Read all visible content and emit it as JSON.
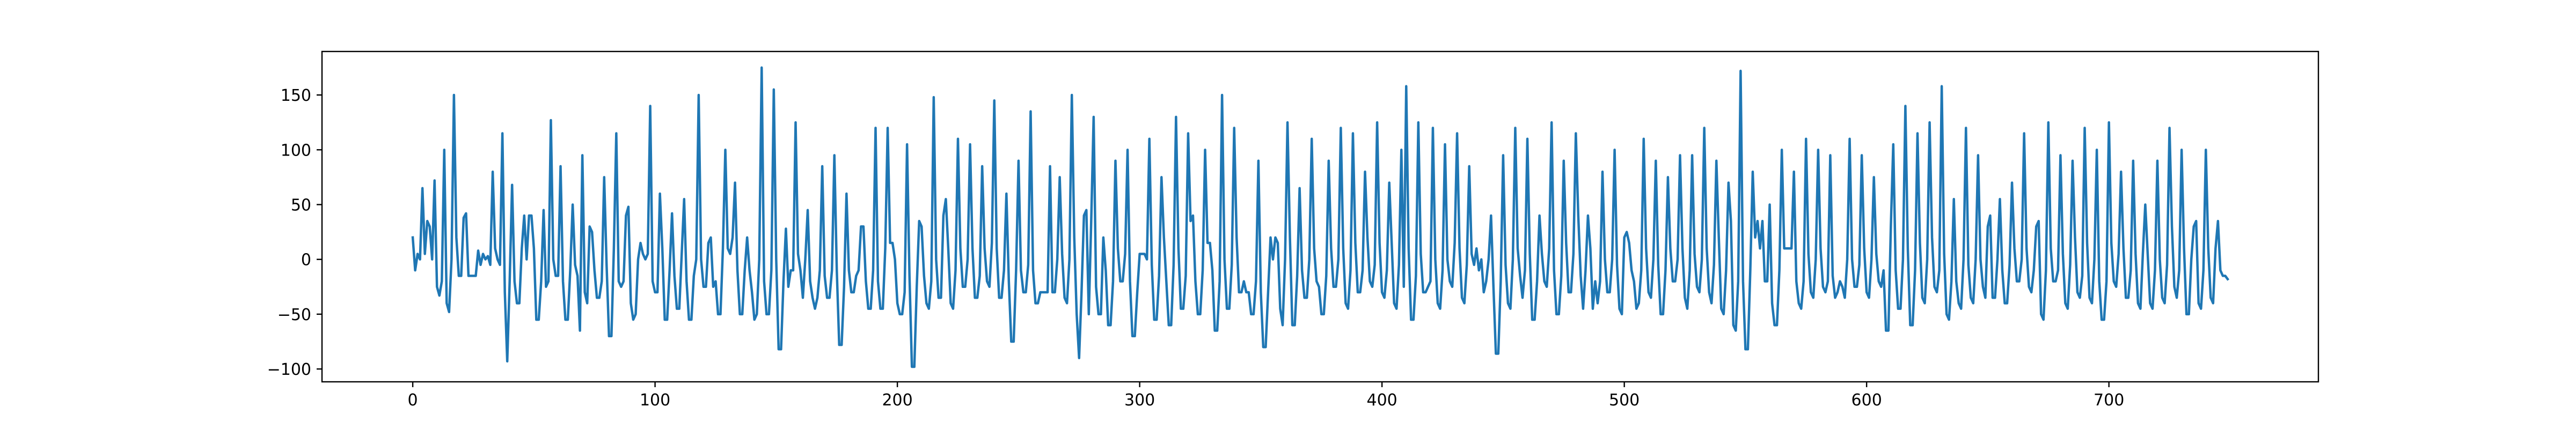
{
  "chart_data": {
    "type": "line",
    "color": "#1f77b4",
    "xlim": [
      -37.45,
      786.45
    ],
    "xticks": [
      0,
      100,
      200,
      300,
      400,
      500,
      600,
      700
    ],
    "ylim": [
      -111.7,
      189.7
    ],
    "yticks": [
      {
        "value": -100,
        "label": "−100"
      },
      {
        "value": -50,
        "label": "−50"
      },
      0,
      50,
      100,
      150
    ],
    "values": [
      20,
      -10,
      5,
      0,
      65,
      5,
      35,
      30,
      0,
      72,
      -25,
      -33,
      -20,
      100,
      -40,
      -48,
      0,
      150,
      20,
      -15,
      -15,
      38,
      42,
      -15,
      -15,
      -15,
      -15,
      8,
      -5,
      5,
      0,
      3,
      -5,
      80,
      10,
      0,
      -5,
      115,
      -30,
      -93,
      -20,
      68,
      -20,
      -40,
      -40,
      10,
      40,
      0,
      40,
      40,
      10,
      -55,
      -55,
      -20,
      45,
      -25,
      -20,
      127,
      0,
      -15,
      -15,
      85,
      -20,
      -55,
      -55,
      -10,
      50,
      -5,
      -15,
      -65,
      95,
      -30,
      -40,
      30,
      25,
      -10,
      -35,
      -35,
      -20,
      75,
      -5,
      -70,
      -70,
      10,
      115,
      -20,
      -25,
      -20,
      40,
      48,
      -40,
      -55,
      -50,
      0,
      15,
      5,
      0,
      5,
      140,
      -20,
      -30,
      -30,
      60,
      10,
      -55,
      -55,
      -10,
      42,
      -15,
      -45,
      -45,
      5,
      55,
      -20,
      -55,
      -55,
      -15,
      0,
      150,
      0,
      -25,
      -25,
      15,
      20,
      -25,
      -20,
      -50,
      -50,
      10,
      100,
      10,
      5,
      20,
      70,
      -10,
      -50,
      -50,
      -10,
      20,
      -10,
      -30,
      -55,
      -50,
      0,
      175,
      -20,
      -50,
      -50,
      -10,
      155,
      0,
      -82,
      -82,
      -20,
      28,
      -25,
      -10,
      -10,
      125,
      5,
      -10,
      -35,
      0,
      45,
      -20,
      -35,
      -45,
      -35,
      -10,
      85,
      -15,
      -35,
      -35,
      -10,
      95,
      -10,
      -78,
      -78,
      -25,
      60,
      -10,
      -30,
      -30,
      -15,
      -10,
      30,
      30,
      -20,
      -45,
      -45,
      -10,
      120,
      -20,
      -45,
      -45,
      10,
      120,
      15,
      15,
      0,
      -40,
      -50,
      -50,
      -30,
      105,
      -15,
      -98,
      -98,
      -25,
      35,
      30,
      -15,
      -40,
      -45,
      -20,
      148,
      0,
      -35,
      -35,
      40,
      55,
      10,
      -40,
      -45,
      -10,
      110,
      10,
      -25,
      -25,
      0,
      105,
      10,
      -35,
      -35,
      -15,
      85,
      10,
      -20,
      -25,
      15,
      145,
      10,
      -35,
      -35,
      -10,
      60,
      -20,
      -75,
      -75,
      -10,
      90,
      -10,
      -30,
      -30,
      -5,
      135,
      -10,
      -40,
      -40,
      -30,
      -30,
      -30,
      -30,
      85,
      -30,
      -30,
      0,
      75,
      5,
      -35,
      -40,
      0,
      150,
      20,
      -50,
      -90,
      -30,
      40,
      45,
      -50,
      35,
      130,
      -25,
      -50,
      -50,
      20,
      -10,
      -60,
      -60,
      -20,
      90,
      10,
      -20,
      -20,
      5,
      100,
      -20,
      -70,
      -70,
      -30,
      5,
      5,
      5,
      0,
      110,
      -5,
      -55,
      -55,
      -15,
      75,
      20,
      -20,
      -60,
      -60,
      -5,
      130,
      10,
      -45,
      -45,
      -15,
      115,
      35,
      40,
      -20,
      -50,
      -50,
      -10,
      100,
      15,
      15,
      -10,
      -65,
      -65,
      -20,
      150,
      0,
      -45,
      -45,
      -5,
      120,
      20,
      -30,
      -30,
      -20,
      -30,
      -30,
      -50,
      -50,
      -20,
      90,
      -30,
      -80,
      -80,
      -30,
      20,
      0,
      20,
      15,
      -45,
      -60,
      0,
      125,
      20,
      -60,
      -60,
      -15,
      65,
      -10,
      -35,
      -35,
      0,
      110,
      10,
      -20,
      -25,
      -50,
      -50,
      -15,
      90,
      10,
      -25,
      -25,
      0,
      120,
      10,
      -40,
      -45,
      -10,
      115,
      15,
      -30,
      -30,
      -10,
      80,
      20,
      -20,
      -25,
      -5,
      125,
      15,
      -30,
      -35,
      -10,
      70,
      15,
      -40,
      -45,
      -5,
      100,
      -25,
      158,
      10,
      -55,
      -55,
      -15,
      125,
      5,
      -30,
      -30,
      -25,
      -20,
      120,
      0,
      -40,
      -45,
      -10,
      105,
      0,
      -20,
      -25,
      15,
      115,
      10,
      -35,
      -40,
      -5,
      85,
      5,
      -5,
      10,
      -10,
      0,
      -30,
      -20,
      0,
      40,
      -25,
      -86,
      -86,
      -20,
      95,
      -5,
      -40,
      -45,
      0,
      120,
      10,
      -15,
      -35,
      -10,
      110,
      5,
      -55,
      -55,
      -20,
      40,
      5,
      -20,
      -25,
      10,
      125,
      -10,
      -50,
      -50,
      -15,
      90,
      15,
      -30,
      -30,
      5,
      115,
      40,
      -15,
      -45,
      -10,
      40,
      10,
      -45,
      -20,
      -40,
      -20,
      80,
      0,
      -30,
      -30,
      0,
      100,
      -5,
      -45,
      -50,
      20,
      25,
      15,
      -10,
      -20,
      -45,
      -40,
      -10,
      110,
      10,
      -30,
      -35,
      0,
      90,
      -5,
      -50,
      -50,
      -10,
      75,
      10,
      -20,
      -20,
      0,
      95,
      10,
      -35,
      -45,
      -10,
      95,
      5,
      -25,
      -30,
      0,
      120,
      10,
      -30,
      -40,
      -5,
      90,
      20,
      -45,
      -50,
      -10,
      70,
      35,
      -60,
      -65,
      -20,
      172,
      -20,
      -82,
      -82,
      -10,
      80,
      20,
      35,
      10,
      35,
      -20,
      -20,
      50,
      -40,
      -60,
      -60,
      -10,
      100,
      10,
      10,
      10,
      10,
      80,
      -20,
      -40,
      -45,
      -20,
      110,
      5,
      -30,
      -35,
      0,
      100,
      10,
      -25,
      -30,
      -20,
      95,
      -15,
      -35,
      -30,
      -20,
      -25,
      -35,
      0,
      110,
      0,
      -25,
      -25,
      -5,
      95,
      10,
      -30,
      -35,
      0,
      75,
      5,
      -20,
      -25,
      -10,
      -65,
      -65,
      30,
      105,
      -10,
      -45,
      -45,
      0,
      140,
      10,
      -60,
      -60,
      -10,
      115,
      15,
      -35,
      -40,
      0,
      125,
      20,
      -25,
      -30,
      -10,
      158,
      5,
      -50,
      -55,
      -20,
      55,
      -20,
      -40,
      -45,
      0,
      120,
      -5,
      -35,
      -40,
      0,
      95,
      0,
      -25,
      -35,
      30,
      40,
      -35,
      -35,
      0,
      55,
      -10,
      -40,
      -40,
      -5,
      70,
      10,
      -20,
      -20,
      0,
      115,
      10,
      -25,
      -30,
      -10,
      30,
      35,
      -50,
      -55,
      -10,
      125,
      10,
      -20,
      -20,
      -10,
      95,
      5,
      -40,
      -45,
      -5,
      90,
      20,
      -30,
      -35,
      -15,
      120,
      15,
      -35,
      -40,
      0,
      100,
      -20,
      -55,
      -55,
      -20,
      125,
      15,
      -20,
      -25,
      5,
      80,
      10,
      -35,
      -35,
      -10,
      90,
      5,
      -40,
      -45,
      5,
      50,
      5,
      -40,
      -45,
      -10,
      90,
      0,
      -35,
      -40,
      -5,
      120,
      30,
      -25,
      -35,
      -10,
      100,
      10,
      -50,
      -50,
      0,
      30,
      35,
      -40,
      -45,
      -10,
      100,
      10,
      -35,
      -40,
      10,
      35,
      -10,
      -15,
      -15,
      -18
    ]
  }
}
